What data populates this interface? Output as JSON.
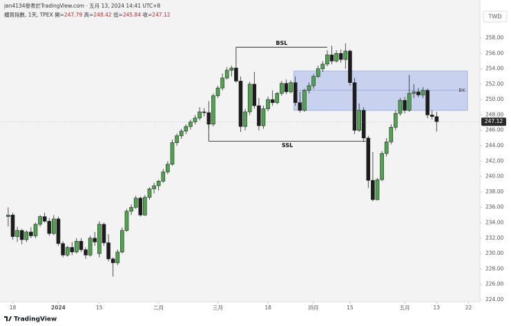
{
  "header": {
    "byline": "jen4134發表於TradingView.com · 五月 13, 2024 14:41 UTC+8",
    "symbol": "櫃買指數, 1天, TPEX",
    "labels": [
      "開=",
      "高=",
      "低=",
      "收="
    ],
    "currency": "TWD",
    "brand": "TradingView"
  },
  "chart_data": {
    "type": "candlestick",
    "series": [
      {
        "up_color": "#4ca64c",
        "down_color": "#1c1c1c",
        "ohlc": [
          [
            234.8,
            236.0,
            233.5,
            235.0
          ],
          [
            235.0,
            235.3,
            231.8,
            232.2
          ],
          [
            232.2,
            233.5,
            231.5,
            233.0
          ],
          [
            233.0,
            233.2,
            231.2,
            231.8
          ],
          [
            231.8,
            233.0,
            231.5,
            232.8
          ],
          [
            232.8,
            233.4,
            232.0,
            232.3
          ],
          [
            232.3,
            234.0,
            232.0,
            233.8
          ],
          [
            233.8,
            235.0,
            233.5,
            234.8
          ],
          [
            234.8,
            235.3,
            234.0,
            234.2
          ],
          [
            234.2,
            234.6,
            232.3,
            232.6
          ],
          [
            232.6,
            235.0,
            232.4,
            234.5
          ],
          [
            234.5,
            234.8,
            231.0,
            231.3
          ],
          [
            231.3,
            231.6,
            229.5,
            229.8
          ],
          [
            229.8,
            231.0,
            229.6,
            230.8
          ],
          [
            230.8,
            231.5,
            229.8,
            230.2
          ],
          [
            230.2,
            232.0,
            230.0,
            231.6
          ],
          [
            231.6,
            232.0,
            230.2,
            230.5
          ],
          [
            230.5,
            230.8,
            229.3,
            229.8
          ],
          [
            229.8,
            232.3,
            229.6,
            232.0
          ],
          [
            232.0,
            232.8,
            231.0,
            231.5
          ],
          [
            230.0,
            234.2,
            229.5,
            233.8
          ],
          [
            233.8,
            234.0,
            231.0,
            231.4
          ],
          [
            231.4,
            232.5,
            229.0,
            229.3
          ],
          [
            229.3,
            229.5,
            227.0,
            228.8
          ],
          [
            228.8,
            230.5,
            228.5,
            230.2
          ],
          [
            230.2,
            233.4,
            230.0,
            233.0
          ],
          [
            233.0,
            235.8,
            232.8,
            235.5
          ],
          [
            235.5,
            236.4,
            235.0,
            236.0
          ],
          [
            236.0,
            237.5,
            235.8,
            237.2
          ],
          [
            237.2,
            237.4,
            234.8,
            235.0
          ],
          [
            235.0,
            237.6,
            234.9,
            237.3
          ],
          [
            237.3,
            238.6,
            237.0,
            238.4
          ],
          [
            238.4,
            239.2,
            237.8,
            238.8
          ],
          [
            238.8,
            239.6,
            238.2,
            239.4
          ],
          [
            239.4,
            241.0,
            239.2,
            240.6
          ],
          [
            240.6,
            242.0,
            240.3,
            241.6
          ],
          [
            241.6,
            244.8,
            241.4,
            244.4
          ],
          [
            244.4,
            245.6,
            244.0,
            245.3
          ],
          [
            245.3,
            246.2,
            244.9,
            245.9
          ],
          [
            245.9,
            246.8,
            245.5,
            246.5
          ],
          [
            246.5,
            247.4,
            246.1,
            247.1
          ],
          [
            247.1,
            248.0,
            246.8,
            247.6
          ],
          [
            247.6,
            249.0,
            247.3,
            248.4
          ],
          [
            248.4,
            248.9,
            247.8,
            248.3
          ],
          [
            248.3,
            249.8,
            246.2,
            246.8
          ],
          [
            246.8,
            250.8,
            246.5,
            250.5
          ],
          [
            250.5,
            251.8,
            250.2,
            251.5
          ],
          [
            251.5,
            253.4,
            251.2,
            252.8
          ],
          [
            252.8,
            254.2,
            252.6,
            253.8
          ],
          [
            253.8,
            254.4,
            253.0,
            254.1
          ],
          [
            254.1,
            254.8,
            252.2,
            252.4
          ],
          [
            252.4,
            253.0,
            245.8,
            246.5
          ],
          [
            246.5,
            248.8,
            246.0,
            248.4
          ],
          [
            248.4,
            252.3,
            248.0,
            252.0
          ],
          [
            252.0,
            253.6,
            248.8,
            249.2
          ],
          [
            249.2,
            250.2,
            246.0,
            246.6
          ],
          [
            246.6,
            249.2,
            246.2,
            248.8
          ],
          [
            248.8,
            250.4,
            248.5,
            250.0
          ],
          [
            250.0,
            251.2,
            249.2,
            249.6
          ],
          [
            249.6,
            251.0,
            249.4,
            250.8
          ],
          [
            250.8,
            252.4,
            250.5,
            252.1
          ],
          [
            252.1,
            252.6,
            250.7,
            251.0
          ],
          [
            251.0,
            252.5,
            250.8,
            252.2
          ],
          [
            252.2,
            253.0,
            249.2,
            249.6
          ],
          [
            249.6,
            251.0,
            248.3,
            248.6
          ],
          [
            248.6,
            251.4,
            248.4,
            251.2
          ],
          [
            251.2,
            252.2,
            250.8,
            251.8
          ],
          [
            251.8,
            253.3,
            251.4,
            253.0
          ],
          [
            253.0,
            254.4,
            252.8,
            254.0
          ],
          [
            254.0,
            255.0,
            253.6,
            254.6
          ],
          [
            254.6,
            256.4,
            254.3,
            255.8
          ],
          [
            255.8,
            257.0,
            254.6,
            255.0
          ],
          [
            255.0,
            256.4,
            254.8,
            256.0
          ],
          [
            256.0,
            256.5,
            254.8,
            255.2
          ],
          [
            255.2,
            257.3,
            254.0,
            256.3
          ],
          [
            256.3,
            256.5,
            251.8,
            252.2
          ],
          [
            252.2,
            252.8,
            245.5,
            246.0
          ],
          [
            246.0,
            249.5,
            245.8,
            248.6
          ],
          [
            248.6,
            249.0,
            244.5,
            245.0
          ],
          [
            245.0,
            245.3,
            238.5,
            239.5
          ],
          [
            239.5,
            243.2,
            236.8,
            237.0
          ],
          [
            237.0,
            239.8,
            236.9,
            239.6
          ],
          [
            239.6,
            243.3,
            239.4,
            243.0
          ],
          [
            243.0,
            245.0,
            242.6,
            244.5
          ],
          [
            244.5,
            246.8,
            244.2,
            246.4
          ],
          [
            246.4,
            248.6,
            246.0,
            248.2
          ],
          [
            248.2,
            250.2,
            247.9,
            249.9
          ],
          [
            249.9,
            250.3,
            248.2,
            248.6
          ],
          [
            248.6,
            253.2,
            248.4,
            250.8
          ],
          [
            250.8,
            252.0,
            250.2,
            251.0
          ],
          [
            251.0,
            251.5,
            250.3,
            250.6
          ],
          [
            250.6,
            251.6,
            250.2,
            251.2
          ],
          [
            251.2,
            251.4,
            247.6,
            248.0
          ],
          [
            248.0,
            248.6,
            247.4,
            247.8
          ],
          [
            247.79,
            248.42,
            245.84,
            247.12
          ]
        ]
      }
    ],
    "xlim": [
      -1.8,
      103.5
    ],
    "xticks": [
      {
        "value": 1,
        "label": "18"
      },
      {
        "value": 11,
        "label": "2024"
      },
      {
        "value": 20,
        "label": "15"
      },
      {
        "value": 33,
        "label": "二月"
      },
      {
        "value": 46,
        "label": "三月"
      },
      {
        "value": 57,
        "label": "18"
      },
      {
        "value": 67,
        "label": "四月"
      },
      {
        "value": 75,
        "label": "15"
      },
      {
        "value": 87,
        "label": "五月"
      },
      {
        "value": 94,
        "label": "13"
      },
      {
        "value": 101,
        "label": "22"
      }
    ],
    "ylim": [
      223.73,
      262.93
    ],
    "yticks": [
      {
        "value": 224,
        "label": "224.00"
      },
      {
        "value": 226,
        "label": "226.00"
      },
      {
        "value": 228,
        "label": "228.00"
      },
      {
        "value": 230,
        "label": "230.00"
      },
      {
        "value": 232,
        "label": "232.00"
      },
      {
        "value": 234,
        "label": "234.00"
      },
      {
        "value": 236,
        "label": "236.00"
      },
      {
        "value": 238,
        "label": "238.00"
      },
      {
        "value": 240,
        "label": "240.00"
      },
      {
        "value": 242,
        "label": "242.00"
      },
      {
        "value": 244,
        "label": "244.00"
      },
      {
        "value": 246,
        "label": "246.00"
      },
      {
        "value": 248,
        "label": "248.00"
      },
      {
        "value": 250,
        "label": "250.00"
      },
      {
        "value": 252,
        "label": "252.00"
      },
      {
        "value": 254,
        "label": "254.00"
      },
      {
        "value": 256,
        "label": "256.00"
      },
      {
        "value": 258,
        "label": "258.00"
      }
    ],
    "last_price": 247.12,
    "zone": {
      "label": "BK",
      "low": 248.6,
      "high": 253.7,
      "mid": 251.2,
      "from": 62.7
    },
    "levels": [
      {
        "label": "BSL",
        "price": 256.8,
        "from": 50,
        "to": 70,
        "end": 254.7
      },
      {
        "label": "SSL",
        "price": 244.6,
        "from": 44,
        "to": 78.5,
        "end": 248.4
      }
    ]
  }
}
